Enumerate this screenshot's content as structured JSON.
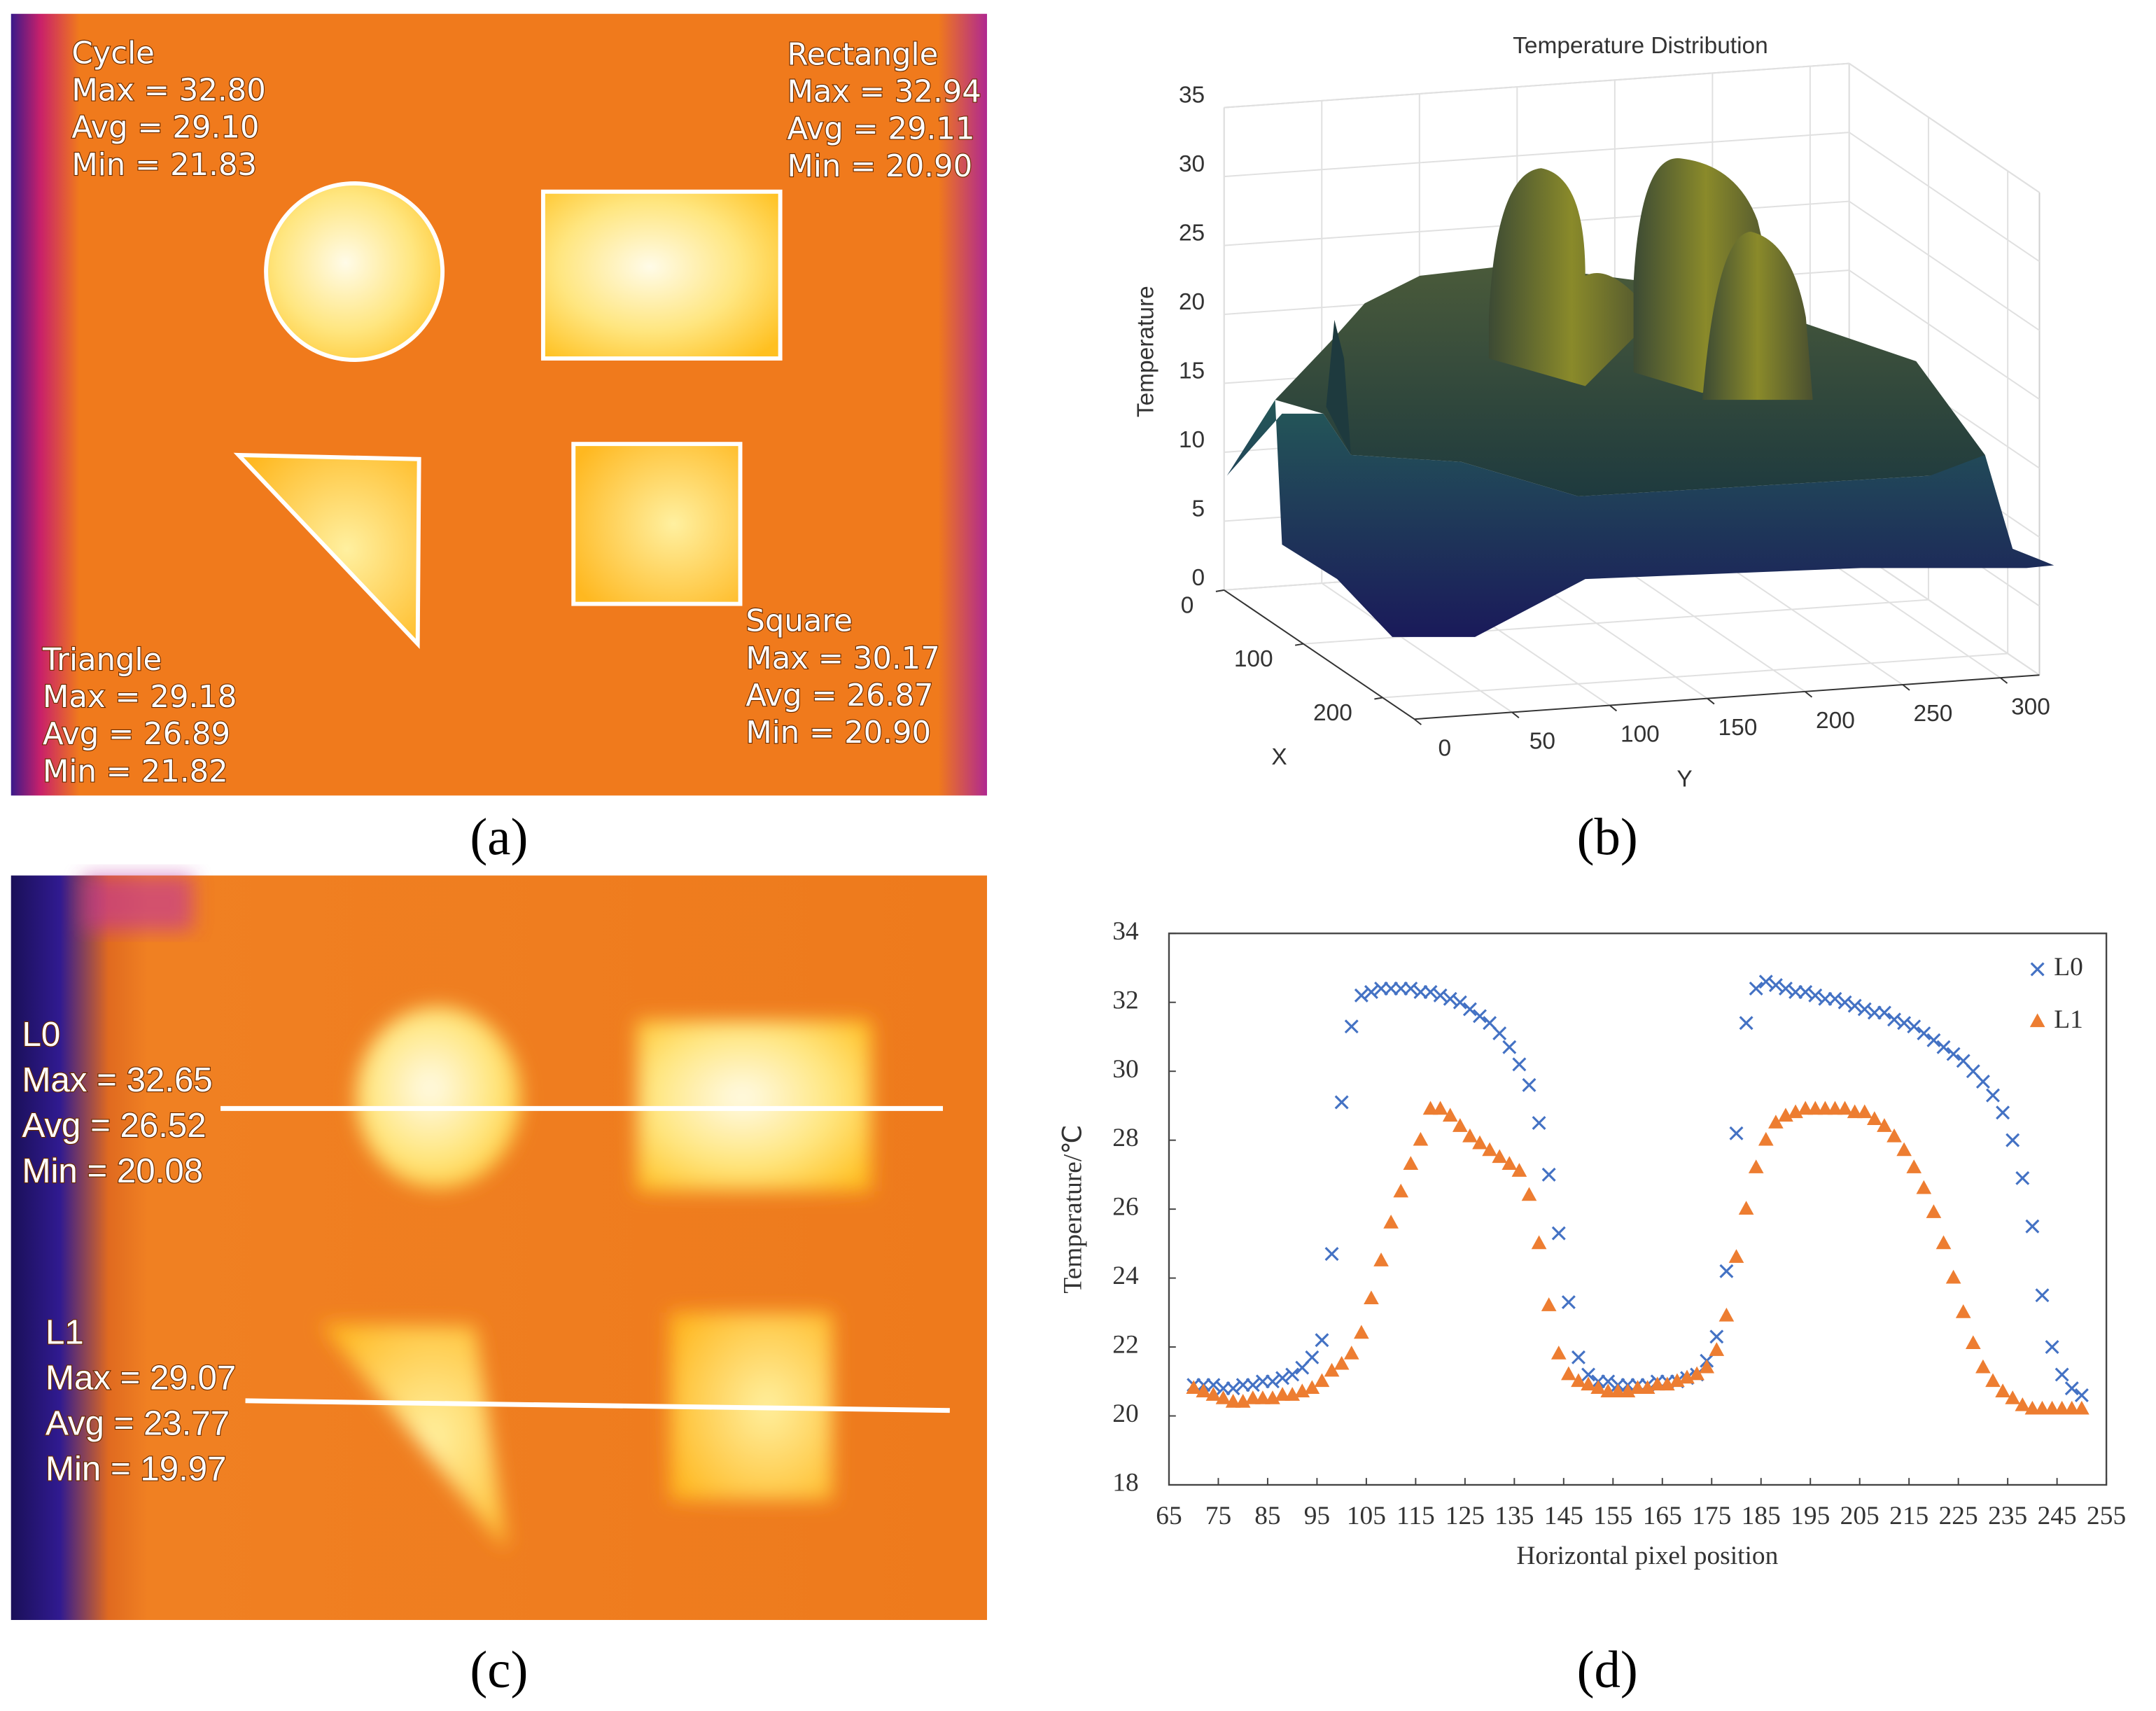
{
  "thermal_images": [
    {
      "label": "(a)",
      "regions": [
        {
          "name": "Cycle",
          "lines": [
            "Max = 32.80",
            "Avg = 29.10",
            "Min = 21.83"
          ]
        },
        {
          "name": "Rectangle",
          "lines": [
            "Max = 32.94",
            "Avg = 29.11",
            "Min = 20.90"
          ]
        },
        {
          "name": "Triangle",
          "lines": [
            "Max = 29.18",
            "Avg = 26.89",
            "Min = 21.82"
          ]
        },
        {
          "name": "Square",
          "lines": [
            "Max = 30.17",
            "Avg = 26.87",
            "Min = 20.90"
          ]
        }
      ]
    },
    {
      "label": "(c)",
      "regions": [
        {
          "name": "L0",
          "lines": [
            "Max = 32.65",
            "Avg = 26.52",
            "Min = 20.08"
          ]
        },
        {
          "name": "L1",
          "lines": [
            "Max = 29.07",
            "Avg = 23.77",
            "Min = 19.97"
          ]
        }
      ]
    }
  ],
  "chart_data": [
    {
      "type": "surface3d",
      "label": "(b)",
      "title": "Temperature Distribution",
      "xlabel": "X",
      "ylabel": "Y",
      "zlabel": "Temperature",
      "xlim": [
        0,
        240
      ],
      "xticks": [
        0,
        100,
        200
      ],
      "ylim": [
        0,
        320
      ],
      "yticks": [
        0,
        50,
        100,
        150,
        200,
        250,
        300
      ],
      "zlim": [
        0,
        35
      ],
      "zticks": [
        0,
        5,
        10,
        15,
        20,
        25,
        30,
        35
      ],
      "grid": true
    },
    {
      "type": "scatter",
      "label": "(d)",
      "xlabel": "Horizontal pixel position",
      "ylabel": "Temperature/℃",
      "xlim": [
        65,
        255
      ],
      "xticks": [
        65,
        75,
        85,
        95,
        105,
        115,
        125,
        135,
        145,
        155,
        165,
        175,
        185,
        195,
        205,
        215,
        225,
        235,
        245,
        255
      ],
      "ylim": [
        18,
        34
      ],
      "yticks": [
        18,
        20,
        22,
        24,
        26,
        28,
        30,
        32,
        34
      ],
      "legend": "top-right",
      "x": [
        70,
        72,
        74,
        76,
        78,
        80,
        82,
        84,
        86,
        88,
        90,
        92,
        94,
        96,
        98,
        100,
        102,
        104,
        106,
        108,
        110,
        112,
        114,
        116,
        118,
        120,
        122,
        124,
        126,
        128,
        130,
        132,
        134,
        136,
        138,
        140,
        142,
        144,
        146,
        148,
        150,
        152,
        154,
        156,
        158,
        160,
        162,
        164,
        166,
        168,
        170,
        172,
        174,
        176,
        178,
        180,
        182,
        184,
        186,
        188,
        190,
        192,
        194,
        196,
        198,
        200,
        202,
        204,
        206,
        208,
        210,
        212,
        214,
        216,
        218,
        220,
        222,
        224,
        226,
        228,
        230,
        232,
        234,
        236,
        238,
        240,
        242,
        244,
        246,
        248,
        250
      ],
      "series": [
        {
          "name": "L0",
          "color": "#4472c4",
          "marker": "x",
          "values": [
            20.9,
            20.9,
            20.9,
            20.8,
            20.8,
            20.9,
            20.9,
            21.0,
            21.0,
            21.1,
            21.2,
            21.4,
            21.7,
            22.2,
            24.7,
            29.1,
            31.3,
            32.2,
            32.3,
            32.4,
            32.4,
            32.4,
            32.4,
            32.3,
            32.3,
            32.2,
            32.1,
            32.0,
            31.8,
            31.6,
            31.4,
            31.1,
            30.7,
            30.2,
            29.6,
            28.5,
            27.0,
            25.3,
            23.3,
            21.7,
            21.2,
            21.0,
            21.0,
            20.9,
            20.9,
            20.9,
            20.9,
            21.0,
            21.0,
            21.0,
            21.1,
            21.2,
            21.6,
            22.3,
            24.2,
            28.2,
            31.4,
            32.4,
            32.6,
            32.5,
            32.4,
            32.3,
            32.3,
            32.2,
            32.1,
            32.1,
            32.0,
            31.9,
            31.8,
            31.7,
            31.7,
            31.5,
            31.4,
            31.3,
            31.1,
            30.9,
            30.7,
            30.5,
            30.3,
            30.0,
            29.7,
            29.3,
            28.8,
            28.0,
            26.9,
            25.5,
            23.5,
            22.0,
            21.2,
            20.8,
            20.6
          ]
        },
        {
          "name": "L1",
          "color": "#ed7d31",
          "marker": "triangle",
          "values": [
            20.8,
            20.7,
            20.6,
            20.5,
            20.4,
            20.4,
            20.5,
            20.5,
            20.5,
            20.6,
            20.6,
            20.7,
            20.8,
            21.0,
            21.3,
            21.5,
            21.8,
            22.4,
            23.4,
            24.5,
            25.6,
            26.5,
            27.3,
            28.0,
            28.9,
            28.9,
            28.7,
            28.4,
            28.1,
            27.9,
            27.7,
            27.5,
            27.3,
            27.1,
            26.4,
            25.0,
            23.2,
            21.8,
            21.2,
            21.0,
            20.9,
            20.8,
            20.7,
            20.7,
            20.7,
            20.8,
            20.8,
            20.9,
            20.9,
            21.0,
            21.1,
            21.2,
            21.4,
            21.9,
            22.9,
            24.6,
            26.0,
            27.2,
            28.0,
            28.5,
            28.7,
            28.8,
            28.9,
            28.9,
            28.9,
            28.9,
            28.9,
            28.8,
            28.8,
            28.6,
            28.4,
            28.1,
            27.7,
            27.2,
            26.6,
            25.9,
            25.0,
            24.0,
            23.0,
            22.1,
            21.4,
            21.0,
            20.7,
            20.5,
            20.3,
            20.2,
            20.2,
            20.2,
            20.2,
            20.2,
            20.2
          ]
        }
      ]
    }
  ]
}
